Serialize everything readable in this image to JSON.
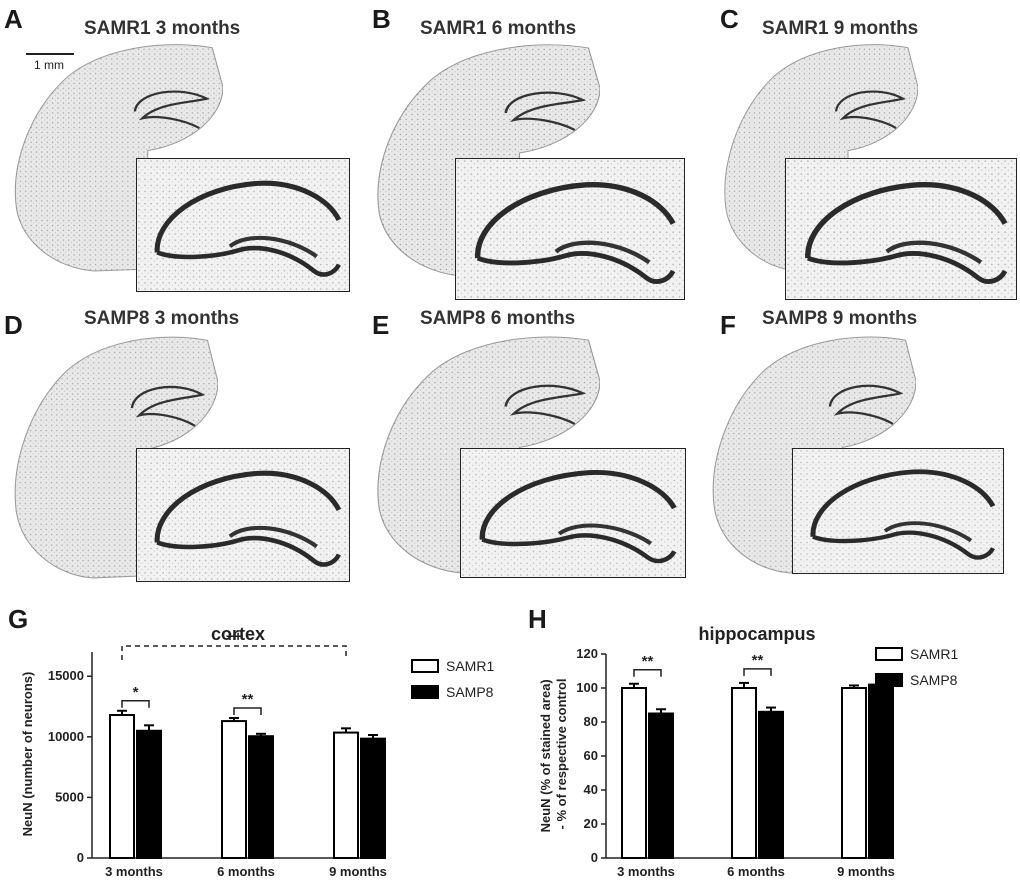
{
  "figure": {
    "scale_bar": "1 mm",
    "panels": [
      {
        "letter": "A",
        "title": "SAMR1 3 months"
      },
      {
        "letter": "B",
        "title": "SAMR1 6 months"
      },
      {
        "letter": "C",
        "title": "SAMR1 9 months"
      },
      {
        "letter": "D",
        "title": "SAMP8 3 months"
      },
      {
        "letter": "E",
        "title": "SAMP8 6 months"
      },
      {
        "letter": "F",
        "title": "SAMP8 9 months"
      }
    ]
  },
  "chart_data": [
    {
      "letter": "G",
      "type": "bar",
      "title": "cortex",
      "ylabel": "NeuN (number of neurons)",
      "xlabel": "",
      "categories": [
        "3 months",
        "6 months",
        "9 months"
      ],
      "ylim": [
        0,
        17000
      ],
      "yticks": [
        0,
        5000,
        10000,
        15000
      ],
      "series": [
        {
          "name": "SAMR1",
          "color": "#ffffff",
          "values": [
            11800,
            11300,
            10350
          ],
          "errors": [
            350,
            250,
            350
          ]
        },
        {
          "name": "SAMP8",
          "color": "#000000",
          "values": [
            10500,
            10050,
            9850
          ],
          "errors": [
            450,
            200,
            300
          ]
        }
      ],
      "annotations": [
        {
          "label": "++",
          "from": "3 months",
          "to": "9 months",
          "style": "dashed"
        },
        {
          "label": "*",
          "group": "3 months"
        },
        {
          "label": "**",
          "group": "6 months"
        }
      ],
      "legend": "top-right"
    },
    {
      "letter": "H",
      "type": "bar",
      "title": "hippocampus",
      "ylabel": "NeuN (% of stained area) - % of respective control",
      "xlabel": "",
      "categories": [
        "3 months",
        "6 months",
        "9 months"
      ],
      "ylim": [
        0,
        120
      ],
      "yticks": [
        0,
        20,
        40,
        60,
        80,
        100,
        120
      ],
      "series": [
        {
          "name": "SAMR1",
          "color": "#ffffff",
          "values": [
            100,
            100,
            100
          ],
          "errors": [
            2.5,
            3,
            1.5
          ]
        },
        {
          "name": "SAMP8",
          "color": "#000000",
          "values": [
            85,
            86,
            102
          ],
          "errors": [
            2.5,
            2.5,
            3
          ]
        }
      ],
      "annotations": [
        {
          "label": "**",
          "group": "3 months"
        },
        {
          "label": "**",
          "group": "6 months"
        }
      ],
      "legend": "top-right"
    }
  ]
}
